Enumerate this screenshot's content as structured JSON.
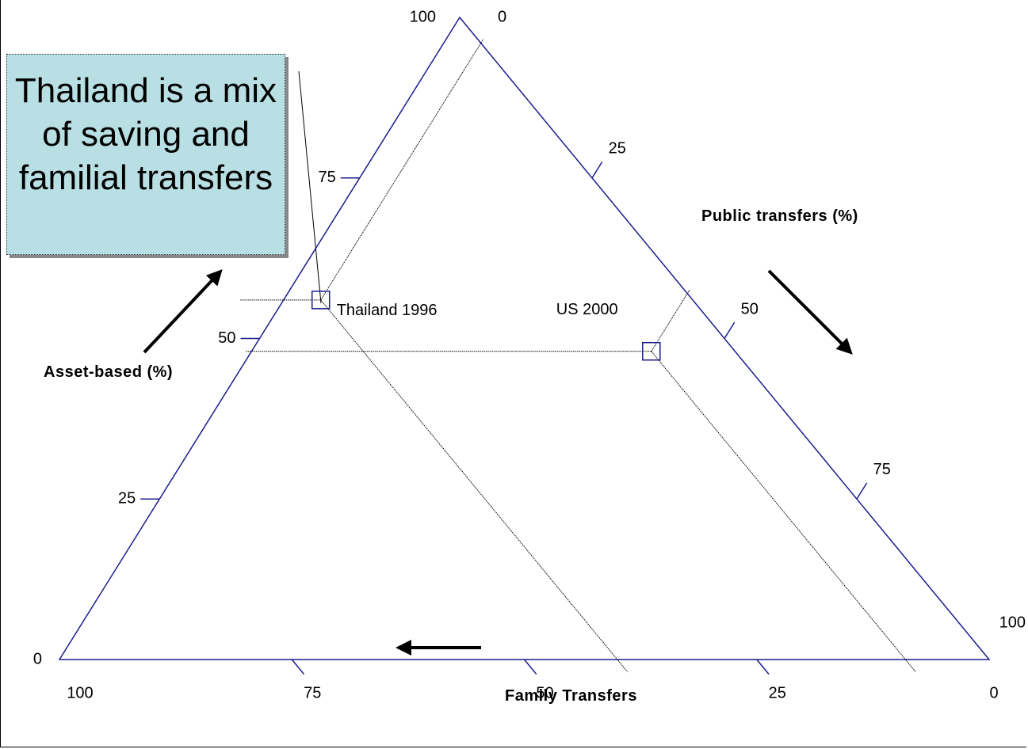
{
  "chart_data": {
    "type": "ternary",
    "annotation": "Thailand is a mix of saving and familial transfers",
    "color": "#1c1c8c",
    "asset_axis": {
      "title": "Asset-based (%)",
      "lim": [
        0,
        100
      ],
      "ticks": [
        0,
        25,
        50,
        75,
        100
      ]
    },
    "public_axis": {
      "title": "Public transfers (%)",
      "lim": [
        0,
        100
      ],
      "ticks": [
        0,
        25,
        50,
        75,
        100
      ]
    },
    "family_axis": {
      "title": "Family Transfers",
      "lim": [
        0,
        100
      ],
      "ticks": [
        100,
        75,
        50,
        25,
        0
      ]
    },
    "series": [
      {
        "name": "Thailand 1996",
        "values": [
          56,
          4,
          40
        ]
      },
      {
        "name": "US 2000",
        "values": [
          48,
          43,
          9
        ]
      }
    ]
  }
}
